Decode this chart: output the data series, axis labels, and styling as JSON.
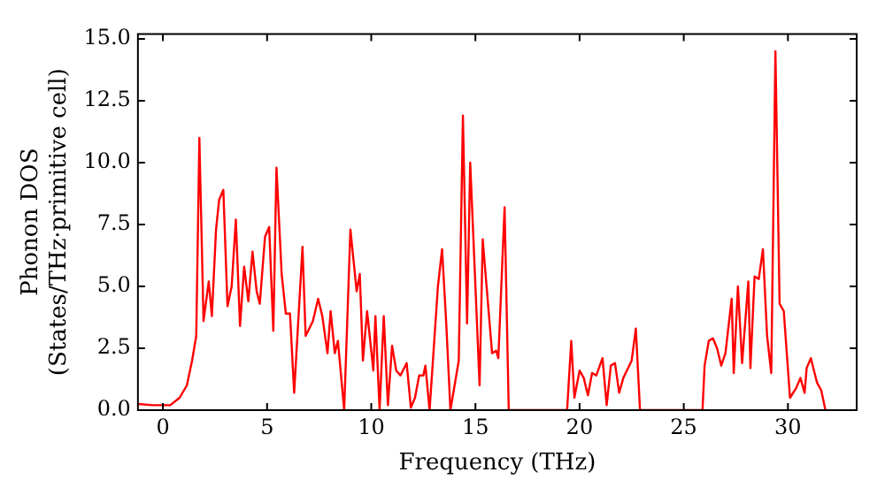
{
  "chart_data": {
    "type": "line",
    "xlabel": "Frequency (THz)",
    "ylabel": "Phonon DOS\n(States/THz·primitive cell)",
    "xlim": [
      -1.2,
      33.3
    ],
    "ylim": [
      0,
      15.2
    ],
    "xticks": [
      0,
      5,
      10,
      15,
      20,
      25,
      30
    ],
    "yticks": [
      {
        "value": 0,
        "label": "0.0"
      },
      2.5,
      {
        "value": 5,
        "label": "5.0"
      },
      7.5,
      {
        "value": 10,
        "label": "10.0"
      },
      12.5,
      {
        "value": 15,
        "label": "15.0"
      }
    ],
    "grid": false,
    "legend": false,
    "marker": "none",
    "line_style": "solid",
    "series": [
      {
        "color": "#ff0000",
        "x": [
          -1.2,
          -0.5,
          0,
          0.35,
          0.8,
          1.15,
          1.4,
          1.6,
          1.75,
          1.95,
          2.2,
          2.35,
          2.55,
          2.7,
          2.9,
          3.1,
          3.3,
          3.5,
          3.7,
          3.9,
          4.1,
          4.3,
          4.5,
          4.65,
          4.9,
          5.1,
          5.3,
          5.45,
          5.7,
          5.9,
          6.1,
          6.3,
          6.7,
          6.85,
          7.2,
          7.45,
          7.65,
          7.9,
          8.05,
          8.25,
          8.4,
          8.7,
          9.0,
          9.3,
          9.45,
          9.6,
          9.8,
          10.1,
          10.2,
          10.4,
          10.6,
          10.8,
          11.0,
          11.2,
          11.4,
          11.7,
          11.9,
          12.1,
          12.3,
          12.5,
          12.6,
          12.8,
          13.2,
          13.4,
          13.6,
          13.8,
          14.2,
          14.4,
          14.6,
          14.75,
          15.2,
          15.35,
          15.8,
          16.0,
          16.1,
          16.4,
          16.6,
          19.4,
          19.6,
          19.75,
          20.0,
          20.2,
          20.4,
          20.6,
          20.8,
          21.1,
          21.3,
          21.5,
          21.7,
          21.9,
          22.1,
          22.5,
          22.7,
          22.9,
          25.9,
          26.0,
          26.2,
          26.4,
          26.6,
          26.8,
          27.0,
          27.3,
          27.4,
          27.6,
          27.8,
          28.1,
          28.2,
          28.4,
          28.6,
          28.8,
          29.0,
          29.2,
          29.4,
          29.6,
          29.8,
          30.1,
          30.4,
          30.6,
          30.8,
          30.9,
          31.1,
          31.4,
          31.6,
          31.8
        ],
        "values": [
          0.25,
          0.2,
          0.2,
          0.2,
          0.5,
          1.0,
          2.0,
          3.0,
          11.0,
          3.6,
          5.2,
          3.8,
          7.3,
          8.5,
          8.9,
          4.2,
          5.0,
          7.7,
          3.4,
          5.8,
          4.4,
          6.4,
          4.8,
          4.3,
          7.0,
          7.4,
          3.2,
          9.8,
          5.5,
          3.9,
          3.9,
          0.7,
          6.6,
          3.0,
          3.6,
          4.5,
          3.8,
          2.3,
          4.0,
          2.3,
          2.8,
          0,
          7.3,
          4.8,
          5.5,
          2.0,
          4.0,
          1.6,
          3.8,
          0,
          3.8,
          0.2,
          2.6,
          1.6,
          1.4,
          1.9,
          0.1,
          0.5,
          1.4,
          1.4,
          1.8,
          0,
          5.0,
          6.5,
          3.5,
          0,
          2.0,
          11.9,
          3.5,
          10.0,
          1.0,
          6.9,
          2.3,
          2.4,
          2.1,
          8.2,
          0,
          0,
          2.8,
          0.5,
          1.6,
          1.3,
          0.6,
          1.5,
          1.4,
          2.1,
          0.2,
          1.8,
          1.9,
          0.7,
          1.3,
          2.0,
          3.3,
          0,
          0,
          1.8,
          2.8,
          2.9,
          2.5,
          1.8,
          2.3,
          4.5,
          1.5,
          5.0,
          1.9,
          5.2,
          1.7,
          5.4,
          5.3,
          6.5,
          3.0,
          1.5,
          14.5,
          4.3,
          4.0,
          0.5,
          0.9,
          1.3,
          0.7,
          1.7,
          2.1,
          1.1,
          0.8,
          0
        ]
      }
    ]
  }
}
